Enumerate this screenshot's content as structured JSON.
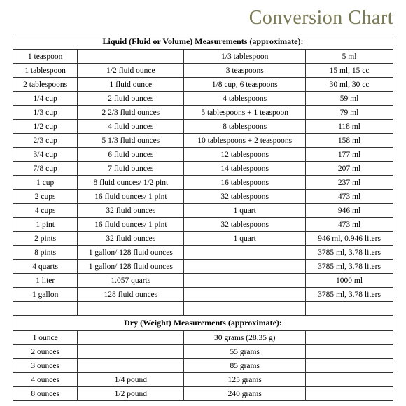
{
  "title": "Conversion Chart",
  "liquid": {
    "header": "Liquid (Fluid or Volume) Measurements (approximate):",
    "rows": [
      [
        "1 teaspoon",
        "",
        "1/3 tablespoon",
        "5 ml"
      ],
      [
        "1 tablespoon",
        "1/2 fluid ounce",
        "3 teaspoons",
        "15 ml, 15 cc"
      ],
      [
        "2 tablespoons",
        "1 fluid ounce",
        "1/8 cup, 6 teaspoons",
        "30 ml, 30 cc"
      ],
      [
        "1/4 cup",
        "2 fluid ounces",
        "4 tablespoons",
        "59 ml"
      ],
      [
        "1/3 cup",
        "2 2/3 fluid ounces",
        "5 tablespoons + 1 teaspoon",
        "79 ml"
      ],
      [
        "1/2 cup",
        "4 fluid ounces",
        "8 tablespoons",
        "118 ml"
      ],
      [
        "2/3 cup",
        "5 1/3 fluid ounces",
        "10 tablespoons + 2 teaspoons",
        "158 ml"
      ],
      [
        "3/4 cup",
        "6 fluid ounces",
        "12 tablespoons",
        "177 ml"
      ],
      [
        "7/8 cup",
        "7 fluid ounces",
        "14 tablespoons",
        "207 ml"
      ],
      [
        "1 cup",
        "8 fluid ounces/ 1/2 pint",
        "16 tablespoons",
        "237 ml"
      ],
      [
        "2 cups",
        "16 fluid ounces/ 1 pint",
        "32 tablespoons",
        "473 ml"
      ],
      [
        "4 cups",
        "32 fluid ounces",
        "1 quart",
        "946 ml"
      ],
      [
        "1 pint",
        "16 fluid ounces/ 1 pint",
        "32 tablespoons",
        "473 ml"
      ],
      [
        "2 pints",
        "32 fluid ounces",
        "1 quart",
        "946 ml,  0.946 liters"
      ],
      [
        "8 pints",
        "1 gallon/ 128 fluid ounces",
        "",
        "3785 ml,  3.78 liters"
      ],
      [
        "4 quarts",
        "1 gallon/ 128 fluid ounces",
        "",
        "3785 ml,  3.78 liters"
      ],
      [
        "1 liter",
        "1.057 quarts",
        "",
        "1000 ml"
      ],
      [
        "1 gallon",
        "128 fluid ounces",
        "",
        "3785 ml,  3.78 liters"
      ]
    ]
  },
  "dry": {
    "header": "Dry (Weight) Measurements (approximate):",
    "rows": [
      [
        "1 ounce",
        "",
        "30 grams  (28.35 g)",
        ""
      ],
      [
        "2 ounces",
        "",
        "55 grams",
        ""
      ],
      [
        "3 ounces",
        "",
        "85 grams",
        ""
      ],
      [
        "4 ounces",
        "1/4 pound",
        "125 grams",
        ""
      ],
      [
        "8 ounces",
        "1/2 pound",
        "240 grams",
        ""
      ]
    ]
  },
  "style": {
    "title_color": "#7a7a55",
    "title_fontsize": 28,
    "cell_fontsize": 11.5,
    "border_color": "#333333",
    "background": "#ffffff",
    "col_widths_pct": [
      17,
      28,
      32,
      23
    ]
  }
}
